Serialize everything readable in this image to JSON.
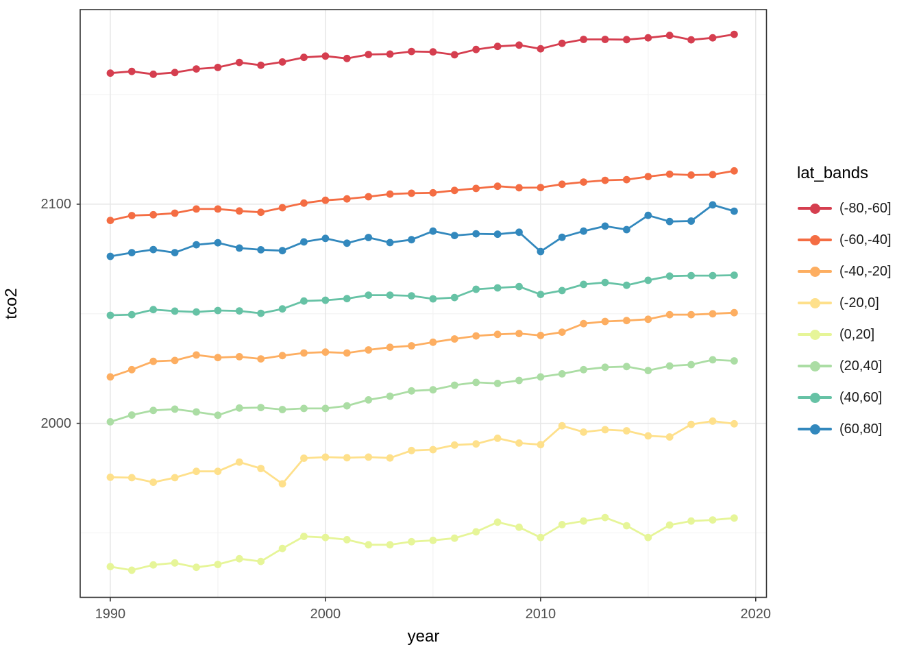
{
  "figure": {
    "x_axis_title": "year",
    "y_axis_title": "tco2"
  },
  "axes": {
    "x_tick_labels": [
      "1990",
      "2000",
      "2010",
      "2020"
    ],
    "y_tick_labels": [
      "2000",
      "2100"
    ]
  },
  "legend": {
    "title": "lat_bands",
    "items": [
      {
        "label": "(-80,-60]",
        "color": "#D53E4F"
      },
      {
        "label": "(-60,-40]",
        "color": "#F46D43"
      },
      {
        "label": "(-40,-20]",
        "color": "#FDAE61"
      },
      {
        "label": "(-20,0]",
        "color": "#FEE08B"
      },
      {
        "label": "(0,20]",
        "color": "#E6F598"
      },
      {
        "label": "(20,40]",
        "color": "#ABDDA4"
      },
      {
        "label": "(40,60]",
        "color": "#66C2A5"
      },
      {
        "label": "(60,80]",
        "color": "#3288BD"
      }
    ]
  },
  "chart_data": {
    "type": "line",
    "title": "",
    "xlabel": "year",
    "ylabel": "tco2",
    "legend_title": "lat_bands",
    "legend_position": "right",
    "grid": true,
    "marker": "point",
    "xlim": [
      1988.6,
      2020.5
    ],
    "ylim": [
      1920.6,
      2188.8
    ],
    "x_major_ticks": [
      {
        "value": 1990,
        "label": "1990"
      },
      {
        "value": 2000,
        "label": "2000"
      },
      {
        "value": 2010,
        "label": "2010"
      },
      {
        "value": 2020,
        "label": "2020"
      }
    ],
    "x_minor_ticks": [
      1995,
      2005,
      2015
    ],
    "y_major_ticks": [
      {
        "value": 2000,
        "label": "2000"
      },
      {
        "value": 2100,
        "label": "2100"
      }
    ],
    "y_minor_ticks": [
      1950,
      2050,
      2150
    ],
    "x": [
      1990,
      1991,
      1992,
      1993,
      1994,
      1995,
      1996,
      1997,
      1998,
      1999,
      2000,
      2001,
      2002,
      2003,
      2004,
      2005,
      2006,
      2007,
      2008,
      2009,
      2010,
      2011,
      2012,
      2013,
      2014,
      2015,
      2016,
      2017,
      2018,
      2019
    ],
    "series": [
      {
        "name": "(-80,-60]",
        "color": "#D53E4F",
        "values": [
          2159.8,
          2160.6,
          2159.3,
          2160.1,
          2161.7,
          2162.4,
          2164.7,
          2163.4,
          2164.9,
          2167.0,
          2167.6,
          2166.5,
          2168.3,
          2168.5,
          2169.7,
          2169.5,
          2168.2,
          2170.6,
          2172.0,
          2172.6,
          2170.9,
          2173.4,
          2175.2,
          2175.2,
          2175.1,
          2175.9,
          2177.0,
          2175.0,
          2175.9,
          2177.5
        ]
      },
      {
        "name": "(-60,-40]",
        "color": "#F46D43",
        "values": [
          2092.6,
          2094.8,
          2095.2,
          2095.9,
          2097.8,
          2097.8,
          2096.9,
          2096.3,
          2098.4,
          2100.5,
          2101.8,
          2102.4,
          2103.4,
          2104.6,
          2105.0,
          2105.2,
          2106.3,
          2107.2,
          2108.2,
          2107.5,
          2107.6,
          2109.1,
          2110.1,
          2110.9,
          2111.2,
          2112.6,
          2113.7,
          2113.3,
          2113.5,
          2115.2
        ]
      },
      {
        "name": "(-40,-20]",
        "color": "#FDAE61",
        "values": [
          2021.2,
          2024.5,
          2028.3,
          2028.7,
          2031.2,
          2030.0,
          2030.4,
          2029.4,
          2030.9,
          2032.1,
          2032.5,
          2032.1,
          2033.5,
          2034.7,
          2035.4,
          2037.0,
          2038.5,
          2039.9,
          2040.6,
          2041.0,
          2040.1,
          2041.6,
          2045.5,
          2046.5,
          2046.9,
          2047.5,
          2049.6,
          2049.6,
          2050.0,
          2050.5
        ]
      },
      {
        "name": "(-20,0]",
        "color": "#FEE08B",
        "values": [
          1975.4,
          1975.2,
          1973.1,
          1975.2,
          1978.1,
          1978.1,
          1982.3,
          1979.4,
          1972.4,
          1984.1,
          1984.6,
          1984.3,
          1984.6,
          1984.2,
          1987.6,
          1988.0,
          1990.1,
          1990.6,
          1993.2,
          1991.0,
          1990.3,
          1998.9,
          1996.0,
          1997.1,
          1996.6,
          1994.3,
          1993.8,
          1999.5,
          2001.0,
          1999.8
        ]
      },
      {
        "name": "(0,20]",
        "color": "#E6F598",
        "values": [
          1934.6,
          1933.0,
          1935.4,
          1936.3,
          1934.3,
          1935.6,
          1938.2,
          1937.0,
          1942.9,
          1948.4,
          1947.9,
          1946.9,
          1944.6,
          1944.6,
          1946.0,
          1946.6,
          1947.6,
          1950.5,
          1954.9,
          1952.6,
          1947.9,
          1953.8,
          1955.4,
          1957.0,
          1953.3,
          1947.9,
          1953.6,
          1955.4,
          1955.9,
          1956.8
        ]
      },
      {
        "name": "(20,40]",
        "color": "#ABDDA4",
        "values": [
          2000.7,
          2003.8,
          2005.9,
          2006.5,
          2005.2,
          2003.7,
          2007.0,
          2007.2,
          2006.3,
          2006.8,
          2006.8,
          2008.0,
          2010.7,
          2012.4,
          2014.8,
          2015.3,
          2017.4,
          2018.7,
          2018.2,
          2019.6,
          2021.2,
          2022.6,
          2024.5,
          2025.6,
          2025.9,
          2024.1,
          2026.2,
          2026.8,
          2029.0,
          2028.5
        ]
      },
      {
        "name": "(40,60]",
        "color": "#66C2A5",
        "values": [
          2049.3,
          2049.6,
          2051.9,
          2051.2,
          2050.8,
          2051.5,
          2051.3,
          2050.2,
          2052.2,
          2055.8,
          2056.2,
          2056.9,
          2058.5,
          2058.5,
          2058.2,
          2056.8,
          2057.4,
          2061.2,
          2061.8,
          2062.4,
          2058.8,
          2060.6,
          2063.4,
          2064.3,
          2063.0,
          2065.3,
          2067.2,
          2067.4,
          2067.4,
          2067.6
        ]
      },
      {
        "name": "(60,80]",
        "color": "#3288BD",
        "values": [
          2076.2,
          2077.9,
          2079.3,
          2077.9,
          2081.5,
          2082.4,
          2080.0,
          2079.2,
          2078.8,
          2082.8,
          2084.4,
          2082.2,
          2084.8,
          2082.5,
          2083.8,
          2087.7,
          2085.7,
          2086.5,
          2086.3,
          2087.2,
          2078.4,
          2084.9,
          2087.7,
          2090.0,
          2088.4,
          2094.9,
          2092.1,
          2092.3,
          2099.7,
          2096.8
        ]
      }
    ]
  }
}
